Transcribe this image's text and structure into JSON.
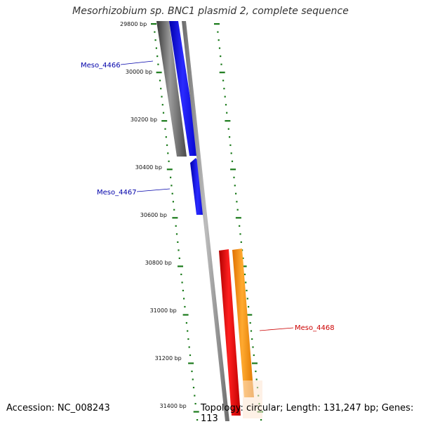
{
  "title": "Mesorhizobium sp. BNC1 plasmid 2, complete sequence",
  "footer": {
    "accession": "Accession: NC_008243",
    "topology": "Topology: circular; Length: 131,247 bp; Genes: 113"
  },
  "colors": {
    "tick": "#1a7a1a",
    "backbone": "#8a8a8a",
    "gene_blue": "#0000ee",
    "gene_red": "#ee0000",
    "gene_orange": "#ff8c00",
    "gray_track": "#5a5a5a",
    "label_blue": "#0000aa",
    "label_red": "#cc0000"
  },
  "ticks": [
    {
      "label": "29800 bp",
      "bp": 29800
    },
    {
      "label": "30000 bp",
      "bp": 30000
    },
    {
      "label": "30200 bp",
      "bp": 30200
    },
    {
      "label": "30400 bp",
      "bp": 30400
    },
    {
      "label": "30600 bp",
      "bp": 30600
    },
    {
      "label": "30800 bp",
      "bp": 30800
    },
    {
      "label": "31000 bp",
      "bp": 31000
    },
    {
      "label": "31200 bp",
      "bp": 31200
    },
    {
      "label": "31400 bp",
      "bp": 31400
    }
  ],
  "genes": [
    {
      "name": "Meso_4466",
      "strand": "reverse",
      "color": "#0000ee",
      "label_color": "#0000aa"
    },
    {
      "name": "Meso_4467",
      "strand": "reverse",
      "color": "#0000ee",
      "label_color": "#0000aa"
    },
    {
      "name": "Meso_4468",
      "strand": "forward",
      "color": "#ee0000",
      "label_color": "#cc0000"
    }
  ]
}
